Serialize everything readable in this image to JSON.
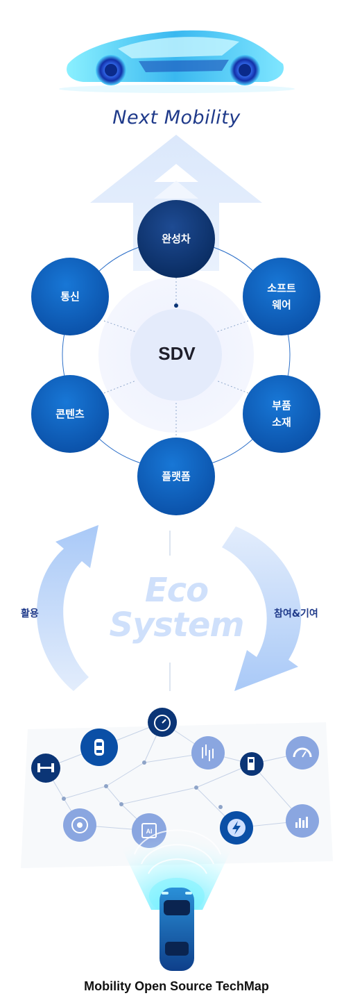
{
  "hero": {
    "title": "Next Mobility"
  },
  "hub": {
    "center": "SDV"
  },
  "nodes": {
    "top": "완성차",
    "right_top": [
      "소프트",
      "웨어"
    ],
    "right_bottom": [
      "부품",
      "소재"
    ],
    "bottom": "플랫폼",
    "left_bottom": "콘텐츠",
    "left_top": "통신"
  },
  "ecosystem": {
    "line1": "Eco",
    "line2": "System",
    "left_label": "활용",
    "right_label": "참여&기여"
  },
  "icons": [
    "axle-icon",
    "car-topview-icon",
    "speedometer-icon",
    "sensor-icon",
    "charging-station-icon",
    "gauge-icon",
    "wheel-icon",
    "ai-chip-icon",
    "lightning-icon",
    "bar-chart-icon"
  ],
  "colors": {
    "navy": "#0b3576",
    "node_blue": "#0d62c4",
    "arrow_light": "#dbe8fb",
    "title_blue": "#1f3a8a"
  },
  "footer": {
    "caption": "Mobility Open Source TechMap"
  }
}
